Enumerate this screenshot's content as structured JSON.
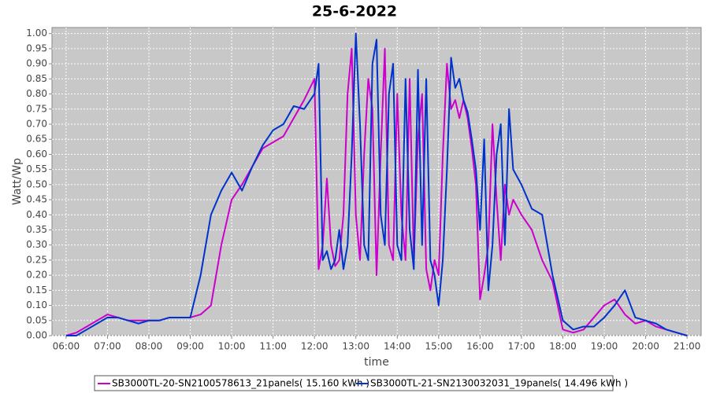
{
  "chart_data": {
    "type": "line",
    "title": "25-6-2022",
    "x_label": "time",
    "y_label": "Watt/Wp",
    "x": [
      6.0,
      6.25,
      6.5,
      6.75,
      7.0,
      7.25,
      7.5,
      7.75,
      8.0,
      8.25,
      8.5,
      8.75,
      9.0,
      9.25,
      9.5,
      9.75,
      10.0,
      10.25,
      10.5,
      10.75,
      11.0,
      11.25,
      11.5,
      11.75,
      12.0,
      12.1,
      12.2,
      12.3,
      12.4,
      12.5,
      12.6,
      12.7,
      12.8,
      12.9,
      13.0,
      13.1,
      13.2,
      13.3,
      13.4,
      13.5,
      13.6,
      13.7,
      13.8,
      13.9,
      14.0,
      14.1,
      14.2,
      14.3,
      14.4,
      14.5,
      14.6,
      14.7,
      14.8,
      14.9,
      15.0,
      15.1,
      15.2,
      15.3,
      15.4,
      15.5,
      15.6,
      15.7,
      15.8,
      15.9,
      16.0,
      16.1,
      16.2,
      16.3,
      16.4,
      16.5,
      16.6,
      16.7,
      16.8,
      17.0,
      17.25,
      17.5,
      17.75,
      18.0,
      18.25,
      18.5,
      18.75,
      19.0,
      19.25,
      19.5,
      19.75,
      20.0,
      20.25,
      20.5,
      20.75,
      21.0
    ],
    "series": [
      {
        "name": "SB3000TL-20-SN2100578613_21panels( 15.160 kWh )",
        "color": "#cc00cc",
        "values": [
          0,
          0.01,
          0.03,
          0.05,
          0.07,
          0.06,
          0.05,
          0.05,
          0.05,
          0.05,
          0.06,
          0.06,
          0.06,
          0.07,
          0.1,
          0.3,
          0.45,
          0.5,
          0.56,
          0.62,
          0.64,
          0.66,
          0.72,
          0.78,
          0.85,
          0.22,
          0.3,
          0.52,
          0.3,
          0.23,
          0.25,
          0.4,
          0.8,
          0.95,
          0.4,
          0.25,
          0.6,
          0.85,
          0.75,
          0.2,
          0.6,
          0.95,
          0.3,
          0.25,
          0.8,
          0.4,
          0.25,
          0.85,
          0.25,
          0.65,
          0.8,
          0.22,
          0.15,
          0.25,
          0.2,
          0.6,
          0.9,
          0.75,
          0.78,
          0.72,
          0.78,
          0.72,
          0.62,
          0.5,
          0.12,
          0.2,
          0.3,
          0.7,
          0.45,
          0.25,
          0.5,
          0.4,
          0.45,
          0.4,
          0.35,
          0.25,
          0.18,
          0.02,
          0.01,
          0.02,
          0.06,
          0.1,
          0.12,
          0.07,
          0.04,
          0.05,
          0.03,
          0.02,
          0.01,
          0
        ]
      },
      {
        "name": "SB3000TL-21-SN2130032031_19panels( 14.496 kWh )",
        "color": "#0033cc",
        "values": [
          0,
          0,
          0.02,
          0.04,
          0.06,
          0.06,
          0.05,
          0.04,
          0.05,
          0.05,
          0.06,
          0.06,
          0.06,
          0.2,
          0.4,
          0.48,
          0.54,
          0.48,
          0.56,
          0.63,
          0.68,
          0.7,
          0.76,
          0.75,
          0.8,
          0.9,
          0.25,
          0.28,
          0.22,
          0.25,
          0.35,
          0.22,
          0.3,
          0.6,
          1.0,
          0.7,
          0.3,
          0.25,
          0.9,
          0.98,
          0.4,
          0.3,
          0.8,
          0.9,
          0.3,
          0.25,
          0.85,
          0.35,
          0.22,
          0.88,
          0.3,
          0.85,
          0.25,
          0.2,
          0.1,
          0.25,
          0.55,
          0.92,
          0.82,
          0.85,
          0.78,
          0.74,
          0.65,
          0.55,
          0.35,
          0.65,
          0.15,
          0.3,
          0.6,
          0.7,
          0.3,
          0.75,
          0.55,
          0.5,
          0.42,
          0.4,
          0.2,
          0.05,
          0.02,
          0.03,
          0.03,
          0.06,
          0.1,
          0.15,
          0.06,
          0.05,
          0.04,
          0.02,
          0.01,
          0
        ]
      }
    ],
    "xlim": [
      5.66,
      21.34
    ],
    "ylim": [
      0,
      1.02
    ],
    "xticks": [
      {
        "value": 6,
        "label": "06:00"
      },
      {
        "value": 7,
        "label": "07:00"
      },
      {
        "value": 8,
        "label": "08:00"
      },
      {
        "value": 9,
        "label": "09:00"
      },
      {
        "value": 10,
        "label": "10:00"
      },
      {
        "value": 11,
        "label": "11:00"
      },
      {
        "value": 12,
        "label": "12:00"
      },
      {
        "value": 13,
        "label": "13:00"
      },
      {
        "value": 14,
        "label": "14:00"
      },
      {
        "value": 15,
        "label": "15:00"
      },
      {
        "value": 16,
        "label": "16:00"
      },
      {
        "value": 17,
        "label": "17:00"
      },
      {
        "value": 18,
        "label": "18:00"
      },
      {
        "value": 19,
        "label": "19:00"
      },
      {
        "value": 20,
        "label": "20:00"
      },
      {
        "value": 21,
        "label": "21:00"
      }
    ],
    "yticks": [
      {
        "value": 0,
        "label": "0.00"
      },
      {
        "value": 0.05,
        "label": "0.05"
      },
      {
        "value": 0.1,
        "label": "0.10"
      },
      {
        "value": 0.15,
        "label": "0.15"
      },
      {
        "value": 0.2,
        "label": "0.20"
      },
      {
        "value": 0.25,
        "label": "0.25"
      },
      {
        "value": 0.3,
        "label": "0.30"
      },
      {
        "value": 0.35,
        "label": "0.35"
      },
      {
        "value": 0.4,
        "label": "0.40"
      },
      {
        "value": 0.45,
        "label": "0.45"
      },
      {
        "value": 0.5,
        "label": "0.50"
      },
      {
        "value": 0.55,
        "label": "0.55"
      },
      {
        "value": 0.6,
        "label": "0.60"
      },
      {
        "value": 0.65,
        "label": "0.65"
      },
      {
        "value": 0.7,
        "label": "0.70"
      },
      {
        "value": 0.75,
        "label": "0.75"
      },
      {
        "value": 0.8,
        "label": "0.80"
      },
      {
        "value": 0.85,
        "label": "0.85"
      },
      {
        "value": 0.9,
        "label": "0.90"
      },
      {
        "value": 0.95,
        "label": "0.95"
      },
      {
        "value": 1.0,
        "label": "1.00"
      }
    ],
    "grid": true
  }
}
